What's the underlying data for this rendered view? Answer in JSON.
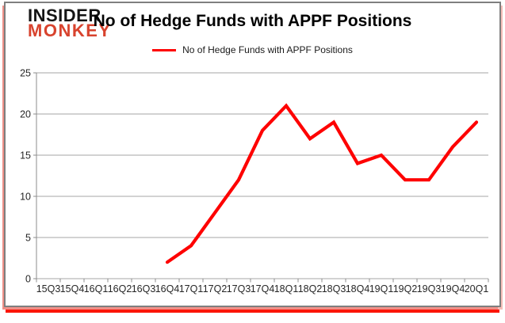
{
  "logo": {
    "line1": "INSIDER",
    "line2": "MONKEY",
    "insider_color": "#141414",
    "monkey_color": "#d8432e"
  },
  "chart_data": {
    "type": "line",
    "title": "No of Hedge Funds with APPF Positions",
    "categories": [
      "15Q3",
      "15Q4",
      "16Q1",
      "16Q2",
      "16Q3",
      "16Q4",
      "17Q1",
      "17Q2",
      "17Q3",
      "17Q4",
      "18Q1",
      "18Q2",
      "18Q3",
      "18Q4",
      "19Q1",
      "19Q2",
      "19Q3",
      "19Q4",
      "20Q1"
    ],
    "series": [
      {
        "name": "No of Hedge Funds with APPF Positions",
        "color": "#fe0000",
        "values": [
          null,
          null,
          null,
          null,
          null,
          2,
          4,
          8,
          12,
          18,
          21,
          17,
          19,
          14,
          15,
          12,
          12,
          16,
          19
        ]
      }
    ],
    "xlabel": "",
    "ylabel": "",
    "ylim": [
      0,
      25
    ],
    "yticks": [
      0,
      5,
      10,
      15,
      20,
      25
    ],
    "grid": "horizontal",
    "legend_position": "top",
    "gridline_color": "#a6a6a6",
    "axis_color": "#8c8c8c",
    "tick_label_color": "#262626",
    "frame_border_color": "#7f7f7f",
    "shadow_color": "#fb1507"
  }
}
